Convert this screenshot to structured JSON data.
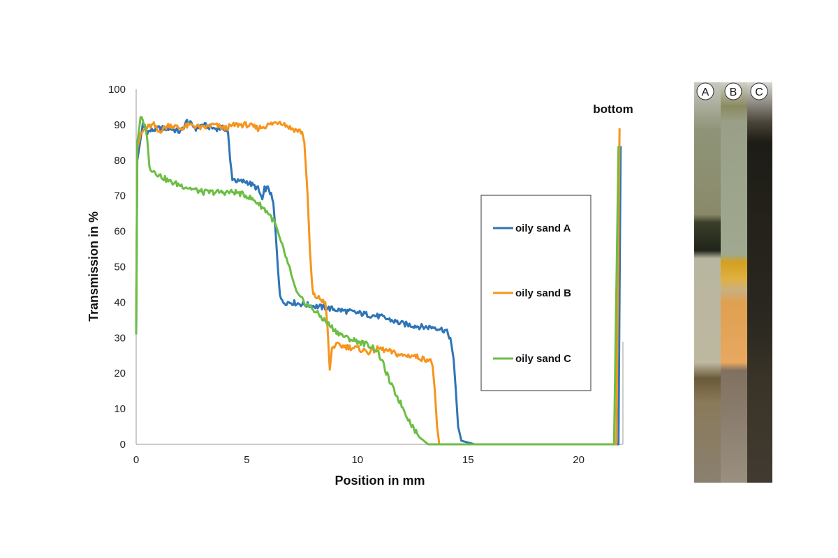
{
  "chart_data": {
    "type": "line",
    "xlabel": "Position in mm",
    "ylabel": "Transmission in %",
    "xlim": [
      0,
      22
    ],
    "ylim": [
      0,
      100
    ],
    "xticks": [
      0,
      5,
      10,
      15,
      20
    ],
    "yticks": [
      0,
      10,
      20,
      30,
      40,
      50,
      60,
      70,
      80,
      90,
      100
    ],
    "grid": false,
    "legend_position": "right",
    "annotations": [
      "bottom"
    ],
    "series": [
      {
        "name": "oily sand A",
        "color": "#2E75B6",
        "points": [
          [
            0,
            31
          ],
          [
            0.05,
            80
          ],
          [
            0.3,
            90
          ],
          [
            0.5,
            88
          ],
          [
            1,
            89
          ],
          [
            1.5,
            89
          ],
          [
            2,
            88
          ],
          [
            2.3,
            91
          ],
          [
            2.7,
            89
          ],
          [
            3,
            90
          ],
          [
            3.5,
            89
          ],
          [
            4,
            89
          ],
          [
            4.15,
            88
          ],
          [
            4.25,
            80
          ],
          [
            4.35,
            75
          ],
          [
            4.6,
            74
          ],
          [
            5,
            74
          ],
          [
            5.5,
            72
          ],
          [
            5.7,
            69
          ],
          [
            5.8,
            72
          ],
          [
            6,
            72
          ],
          [
            6.2,
            68
          ],
          [
            6.3,
            60
          ],
          [
            6.4,
            50
          ],
          [
            6.5,
            42
          ],
          [
            6.6,
            40
          ],
          [
            7,
            40
          ],
          [
            8,
            39
          ],
          [
            9,
            38
          ],
          [
            10,
            37
          ],
          [
            11,
            36
          ],
          [
            12,
            34
          ],
          [
            13,
            33
          ],
          [
            13.5,
            33
          ],
          [
            14,
            32
          ],
          [
            14.2,
            30
          ],
          [
            14.35,
            24
          ],
          [
            14.45,
            15
          ],
          [
            14.55,
            5
          ],
          [
            14.7,
            1
          ],
          [
            15,
            0.5
          ],
          [
            15.3,
            0
          ],
          [
            21.5,
            0
          ],
          [
            21.8,
            0
          ],
          [
            21.9,
            84
          ]
        ]
      },
      {
        "name": "oily sand B",
        "color": "#F7941D",
        "points": [
          [
            0,
            35
          ],
          [
            0.05,
            84
          ],
          [
            0.2,
            87
          ],
          [
            0.4,
            89
          ],
          [
            0.8,
            90
          ],
          [
            1,
            88
          ],
          [
            1.5,
            90
          ],
          [
            2,
            89
          ],
          [
            2.5,
            90
          ],
          [
            3,
            89
          ],
          [
            3.5,
            90
          ],
          [
            4,
            89
          ],
          [
            4.5,
            90
          ],
          [
            5,
            90
          ],
          [
            5.5,
            89
          ],
          [
            6,
            90
          ],
          [
            6.5,
            91
          ],
          [
            7,
            89
          ],
          [
            7.5,
            88
          ],
          [
            7.6,
            85
          ],
          [
            7.75,
            70
          ],
          [
            7.85,
            55
          ],
          [
            7.95,
            45
          ],
          [
            8,
            42
          ],
          [
            8.3,
            41
          ],
          [
            8.55,
            40
          ],
          [
            8.65,
            33
          ],
          [
            8.75,
            21
          ],
          [
            8.85,
            27
          ],
          [
            9,
            28
          ],
          [
            10,
            27
          ],
          [
            10.5,
            26
          ],
          [
            11,
            27
          ],
          [
            11.5,
            26
          ],
          [
            12,
            25
          ],
          [
            12.5,
            25
          ],
          [
            13,
            24
          ],
          [
            13.3,
            24
          ],
          [
            13.4,
            22
          ],
          [
            13.5,
            15
          ],
          [
            13.6,
            5
          ],
          [
            13.7,
            0
          ],
          [
            21.7,
            0
          ],
          [
            21.85,
            89
          ]
        ]
      },
      {
        "name": "oily sand C",
        "color": "#6CBE45",
        "points": [
          [
            0,
            31
          ],
          [
            0.05,
            85
          ],
          [
            0.2,
            92
          ],
          [
            0.4,
            90
          ],
          [
            0.5,
            86
          ],
          [
            0.6,
            78
          ],
          [
            1,
            76
          ],
          [
            1.5,
            74
          ],
          [
            2,
            73
          ],
          [
            2.5,
            72
          ],
          [
            3,
            71
          ],
          [
            3.5,
            71
          ],
          [
            4,
            71
          ],
          [
            4.5,
            71
          ],
          [
            5,
            70
          ],
          [
            5.5,
            68
          ],
          [
            6,
            65
          ],
          [
            6.3,
            62
          ],
          [
            6.6,
            56
          ],
          [
            6.8,
            52
          ],
          [
            7,
            48
          ],
          [
            7.3,
            42
          ],
          [
            7.6,
            40
          ],
          [
            8,
            38
          ],
          [
            8.5,
            35
          ],
          [
            9,
            32
          ],
          [
            9.5,
            30
          ],
          [
            10,
            29
          ],
          [
            10.5,
            28
          ],
          [
            10.8,
            27
          ],
          [
            11,
            25
          ],
          [
            11.2,
            22
          ],
          [
            11.5,
            17
          ],
          [
            12,
            11
          ],
          [
            12.4,
            6
          ],
          [
            12.8,
            2
          ],
          [
            13.2,
            0
          ],
          [
            21.6,
            0
          ],
          [
            21.8,
            84
          ]
        ]
      }
    ]
  },
  "photo": {
    "labels": [
      "A",
      "B",
      "C"
    ]
  }
}
